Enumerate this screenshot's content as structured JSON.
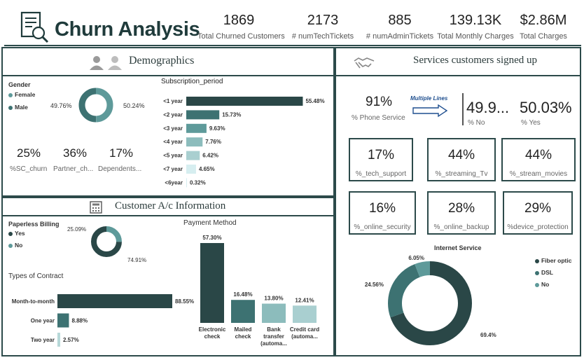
{
  "header": {
    "title": "Churn Analysis",
    "kpis": [
      {
        "value": "1869",
        "label": "Total Churned Customers"
      },
      {
        "value": "2173",
        "label": "# numTechTickets"
      },
      {
        "value": "885",
        "label": "# numAdminTickets"
      },
      {
        "value": "139.13K",
        "label": "Total Monthly Charges"
      },
      {
        "value": "$2.86M",
        "label": "Total Charges"
      }
    ]
  },
  "demographics": {
    "title": "Demographics",
    "gender": {
      "title": "Gender",
      "legend": [
        "Female",
        "Male"
      ],
      "left_label": "49.76%",
      "right_label": "50.24%"
    },
    "stats": [
      {
        "value": "25%",
        "label": "%SC_churn"
      },
      {
        "value": "36%",
        "label": "Partner_ch..."
      },
      {
        "value": "17%",
        "label": "Dependents..."
      }
    ],
    "subscription_title": "Subscription_period"
  },
  "account": {
    "title": "Customer A/c Information",
    "paperless": {
      "title": "Paperless Billing",
      "legend": [
        "Yes",
        "No"
      ],
      "left_label": "25.09%",
      "right_label": "74.91%"
    },
    "contract_title": "Types of Contract",
    "payment_title": "Payment Method"
  },
  "services": {
    "title": "Services customers signed up",
    "phone": {
      "value": "91%",
      "label": "% Phone Service"
    },
    "multiple_lines_label": "Multiple Lines",
    "no": {
      "value": "49.9...",
      "label": "% No"
    },
    "yes": {
      "value": "50.03%",
      "label": "% Yes"
    },
    "cards": [
      {
        "value": "17%",
        "label": "%_tech_support"
      },
      {
        "value": "44%",
        "label": "%_streaming_Tv"
      },
      {
        "value": "44%",
        "label": "%_stream_movies"
      },
      {
        "value": "16%",
        "label": "%_online_security"
      },
      {
        "value": "28%",
        "label": "%_online_backup"
      },
      {
        "value": "29%",
        "label": "%device_protection"
      }
    ],
    "internet_title": "Internet Service",
    "internet_legend": [
      "Fiber optic",
      "DSL",
      "No"
    ]
  },
  "colors": {
    "dark": "#2a4747",
    "mid": "#3d7272",
    "teal": "#5e9a9a",
    "light": "#8cbcbc",
    "lighter": "#b7d8d8",
    "lightest": "#d6eef0"
  },
  "chart_data": [
    {
      "type": "pie",
      "title": "Gender",
      "categories": [
        "Female",
        "Male"
      ],
      "values": [
        49.76,
        50.24
      ]
    },
    {
      "type": "bar",
      "title": "Subscription_period",
      "categories": [
        "<1 year",
        "<2 year",
        "<3 year",
        "<4 year",
        "<5 year",
        "<7 year",
        "<6year"
      ],
      "values": [
        55.48,
        15.73,
        9.63,
        7.76,
        6.42,
        4.65,
        0.32
      ],
      "labels": [
        "55.48%",
        "15.73%",
        "9.63%",
        "7.76%",
        "6.42%",
        "4.65%",
        "0.32%"
      ]
    },
    {
      "type": "pie",
      "title": "Paperless Billing",
      "categories": [
        "Yes",
        "No"
      ],
      "values": [
        74.91,
        25.09
      ]
    },
    {
      "type": "bar",
      "title": "Types of Contract",
      "categories": [
        "Month-to-month",
        "One year",
        "Two year"
      ],
      "values": [
        88.55,
        8.88,
        2.57
      ],
      "labels": [
        "88.55%",
        "8.88%",
        "2.57%"
      ]
    },
    {
      "type": "bar",
      "title": "Payment Method",
      "categories": [
        "Electronic check",
        "Mailed check",
        "Bank transfer (automa...",
        "Credit card (automa..."
      ],
      "values": [
        57.3,
        16.48,
        13.8,
        12.41
      ],
      "labels": [
        "57.30%",
        "16.48%",
        "13.80%",
        "12.41%"
      ]
    },
    {
      "type": "pie",
      "title": "Internet Service",
      "categories": [
        "Fiber optic",
        "DSL",
        "No"
      ],
      "values": [
        69.4,
        24.56,
        6.05
      ],
      "labels": [
        "69.4%",
        "24.56%",
        "6.05%"
      ]
    }
  ]
}
